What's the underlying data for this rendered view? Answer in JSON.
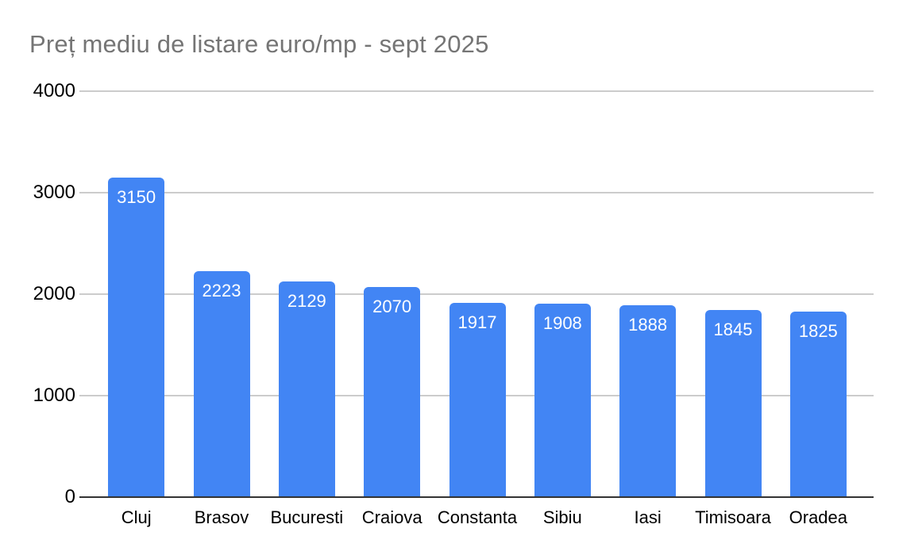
{
  "header": {
    "title": "Preț mediu de listare euro/mp - sept 2025"
  },
  "colors": {
    "bar": "#4285f4",
    "gridline": "#cccccc",
    "axis_baseline": "#333333",
    "title_text": "#757575",
    "axis_label_text": "#000000",
    "value_label_text": "#ffffff",
    "background": "#ffffff"
  },
  "chart_data": {
    "type": "bar",
    "title": "Preț mediu de listare euro/mp - sept 2025",
    "categories": [
      "Cluj",
      "Brasov",
      "Bucuresti",
      "Craiova",
      "Constanta",
      "Sibiu",
      "Iasi",
      "Timisoara",
      "Oradea"
    ],
    "values": [
      3150,
      2223,
      2129,
      2070,
      1917,
      1908,
      1888,
      1845,
      1825
    ],
    "series": [
      {
        "name": "Preț mediu de listare euro/mp",
        "values": [
          3150,
          2223,
          2129,
          2070,
          1917,
          1908,
          1888,
          1845,
          1825
        ]
      }
    ],
    "xlabel": "",
    "ylabel": "",
    "ylim": [
      0,
      4000
    ],
    "yticks": [
      0,
      1000,
      2000,
      3000,
      4000
    ],
    "grid": true,
    "legend": "none",
    "data_labels": "inside-top"
  }
}
